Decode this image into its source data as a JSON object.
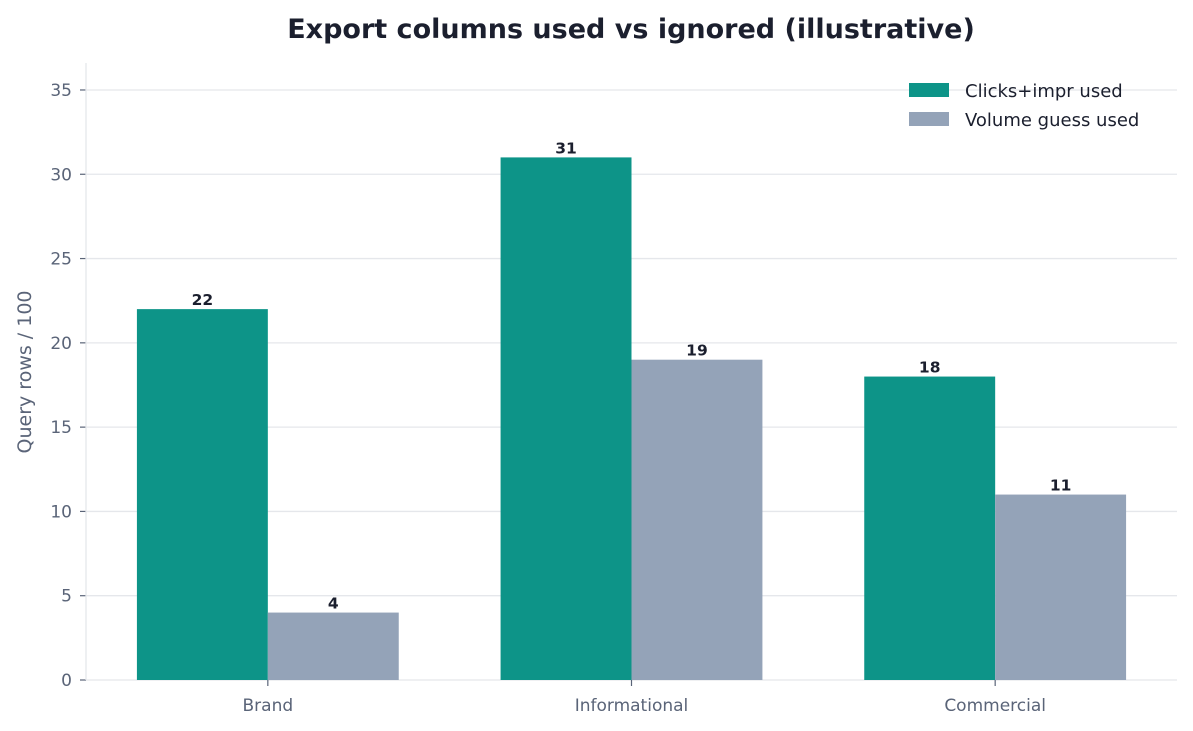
{
  "chart_data": {
    "type": "bar",
    "title": "Export columns used vs ignored (illustrative)",
    "xlabel": "",
    "ylabel": "Query rows / 100",
    "categories": [
      "Brand",
      "Informational",
      "Commercial"
    ],
    "series": [
      {
        "name": "Clicks+impr used",
        "values": [
          22,
          31,
          18
        ],
        "color": "#0d9488"
      },
      {
        "name": "Volume guess used",
        "values": [
          4,
          19,
          11
        ],
        "color": "#94a3b8"
      }
    ],
    "ylim": [
      0,
      36.6
    ],
    "yticks": [
      0,
      5,
      10,
      15,
      20,
      25,
      30,
      35
    ],
    "grid": "horizontal",
    "legend_position": "top-right"
  }
}
